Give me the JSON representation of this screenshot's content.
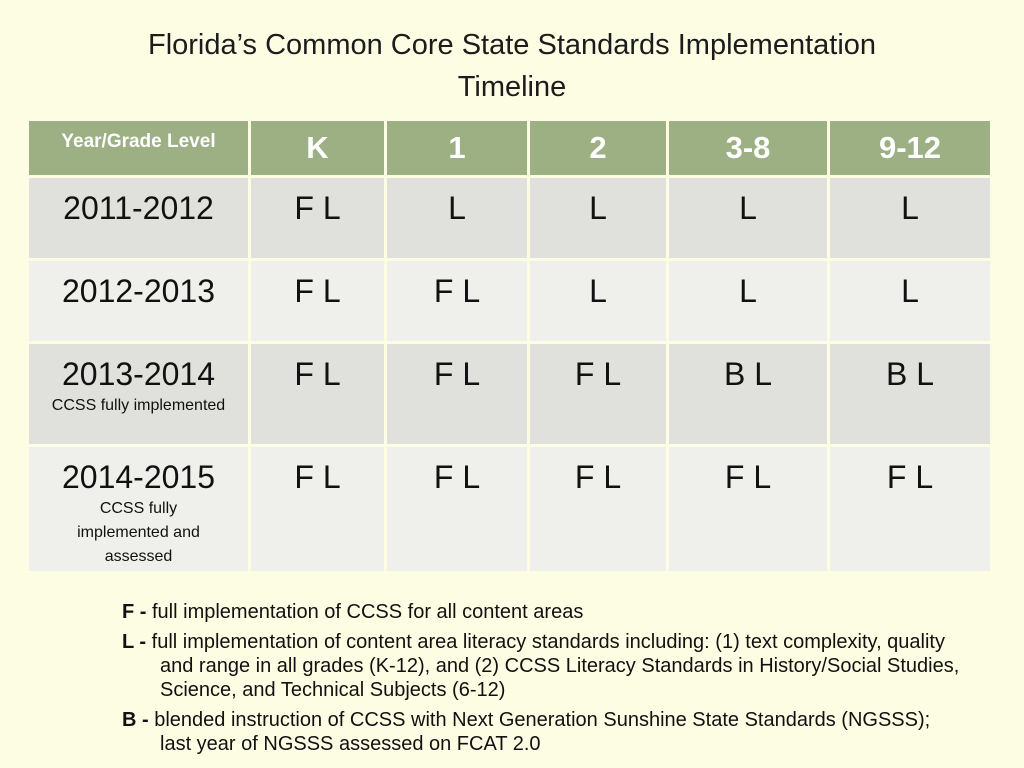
{
  "title": {
    "line1": "Florida’s Common Core State Standards Implementation",
    "line2": "Timeline"
  },
  "table": {
    "corner_label": "Year/Grade Level",
    "grades": [
      "K",
      "1",
      "2",
      "3-8",
      "9-12"
    ],
    "rows": [
      {
        "year": "2011-2012",
        "note": "",
        "cells": [
          "F L",
          "L",
          "L",
          "L",
          "L"
        ]
      },
      {
        "year": "2012-2013",
        "note": "",
        "cells": [
          "F L",
          "F L",
          "L",
          "L",
          "L"
        ]
      },
      {
        "year": "2013-2014",
        "note": "CCSS fully implemented",
        "cells": [
          "F L",
          "F L",
          "F L",
          "B L",
          "B L"
        ]
      },
      {
        "year": "2014-2015",
        "note": "CCSS fully implemented and assessed",
        "cells": [
          "F L",
          "F L",
          "F L",
          "F L",
          "F L"
        ]
      }
    ]
  },
  "legend": [
    {
      "key": "F -",
      "text": "full implementation of CCSS for all content areas"
    },
    {
      "key": "L -",
      "text": "full implementation of content area literacy standards including:  (1) text complexity, quality and range in all grades (K-12), and (2) CCSS Literacy Standards in History/Social Studies, Science, and Technical Subjects (6-12)"
    },
    {
      "key": "B -",
      "text": "blended instruction of CCSS with Next Generation Sunshine State Standards (NGSSS); last year of NGSSS assessed on FCAT 2.0"
    }
  ],
  "colors": {
    "background": "#fdfde4",
    "header": "#9cb084",
    "row_dark": "#e0e0dc",
    "row_light": "#efefec"
  }
}
